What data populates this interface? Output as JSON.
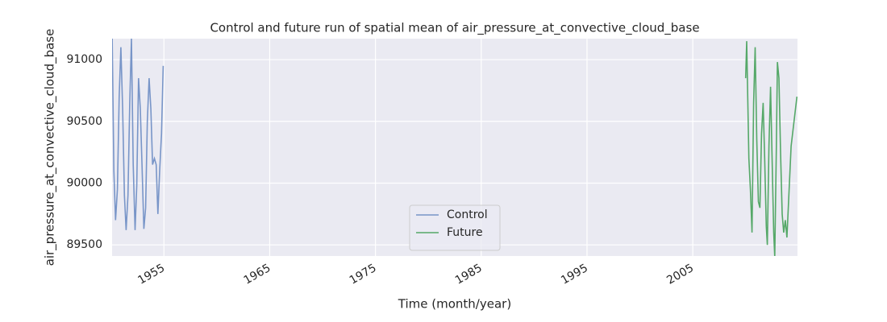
{
  "chart_data": {
    "type": "line",
    "title": "Control and future run of spatial mean of air_pressure_at_convective_cloud_base",
    "x_label": "Time (month/year)",
    "y_label": "air_pressure_at_convective_cloud_base",
    "xlim": [
      1950.1,
      2014.9
    ],
    "xticks": [
      1955,
      1965,
      1975,
      1985,
      1995,
      2005
    ],
    "ylim": [
      89410,
      91170
    ],
    "yticks": [
      89500,
      90000,
      90500,
      91000
    ],
    "grid": true,
    "legend": "lower center",
    "series": [
      {
        "name": "Control",
        "color": "#7895c8",
        "x": [
          1950.1,
          1950.27,
          1950.43,
          1950.6,
          1950.77,
          1950.93,
          1951.1,
          1951.27,
          1951.43,
          1951.6,
          1951.77,
          1951.93,
          1952.1,
          1952.27,
          1952.43,
          1952.6,
          1952.77,
          1952.93,
          1953.1,
          1953.27,
          1953.43,
          1953.6,
          1953.77,
          1953.93,
          1954.1,
          1954.27,
          1954.43,
          1954.6,
          1954.77,
          1954.93
        ],
        "values": [
          91250,
          90100,
          89700,
          89950,
          90700,
          91100,
          90600,
          89900,
          89620,
          89900,
          90650,
          91170,
          90150,
          89620,
          89980,
          90850,
          90600,
          90150,
          89630,
          89800,
          90500,
          90850,
          90600,
          90150,
          90200,
          90150,
          89750,
          90100,
          90400,
          90950
        ]
      },
      {
        "name": "Future",
        "color": "#55a868",
        "x": [
          2010.0,
          2010.1,
          2010.3,
          2010.45,
          2010.6,
          2010.75,
          2010.9,
          2011.05,
          2011.2,
          2011.35,
          2011.5,
          2011.65,
          2011.8,
          2011.95,
          2012.05,
          2012.2,
          2012.35,
          2012.5,
          2012.65,
          2012.75,
          2012.9,
          2013.0,
          2013.15,
          2013.3,
          2013.45,
          2013.6,
          2013.75,
          2013.9,
          2014.3,
          2014.85
        ],
        "values": [
          90850,
          91150,
          90200,
          89950,
          89600,
          90650,
          91100,
          90350,
          89850,
          89800,
          90400,
          90650,
          90200,
          89650,
          89500,
          90300,
          90780,
          90200,
          89600,
          89400,
          90300,
          90980,
          90850,
          90250,
          89750,
          89600,
          89700,
          89560,
          90300,
          90700
        ]
      }
    ]
  }
}
